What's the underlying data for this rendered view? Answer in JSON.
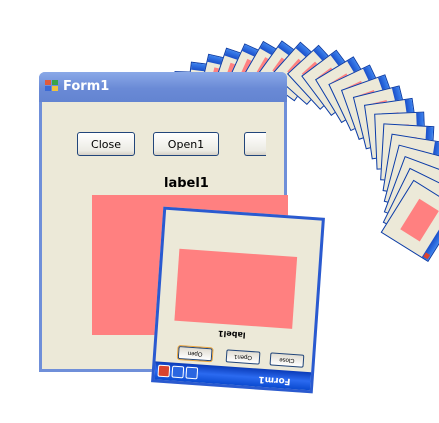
{
  "window": {
    "title": "Form1",
    "buttons": {
      "close": "Close",
      "open1": "Open1"
    },
    "label": "label1"
  },
  "rotated_window": {
    "title": "Form1",
    "label": "label1",
    "buttons": [
      "Close",
      "Open1",
      "Open"
    ]
  },
  "colors": {
    "pink": "#ff8080",
    "titlebar": "#6a8ad6",
    "xp_blue": "#0a3ba8",
    "face": "#ece9d8"
  },
  "icons": [
    "window-icon",
    "close-icon",
    "minimize-icon",
    "maximize-icon"
  ]
}
